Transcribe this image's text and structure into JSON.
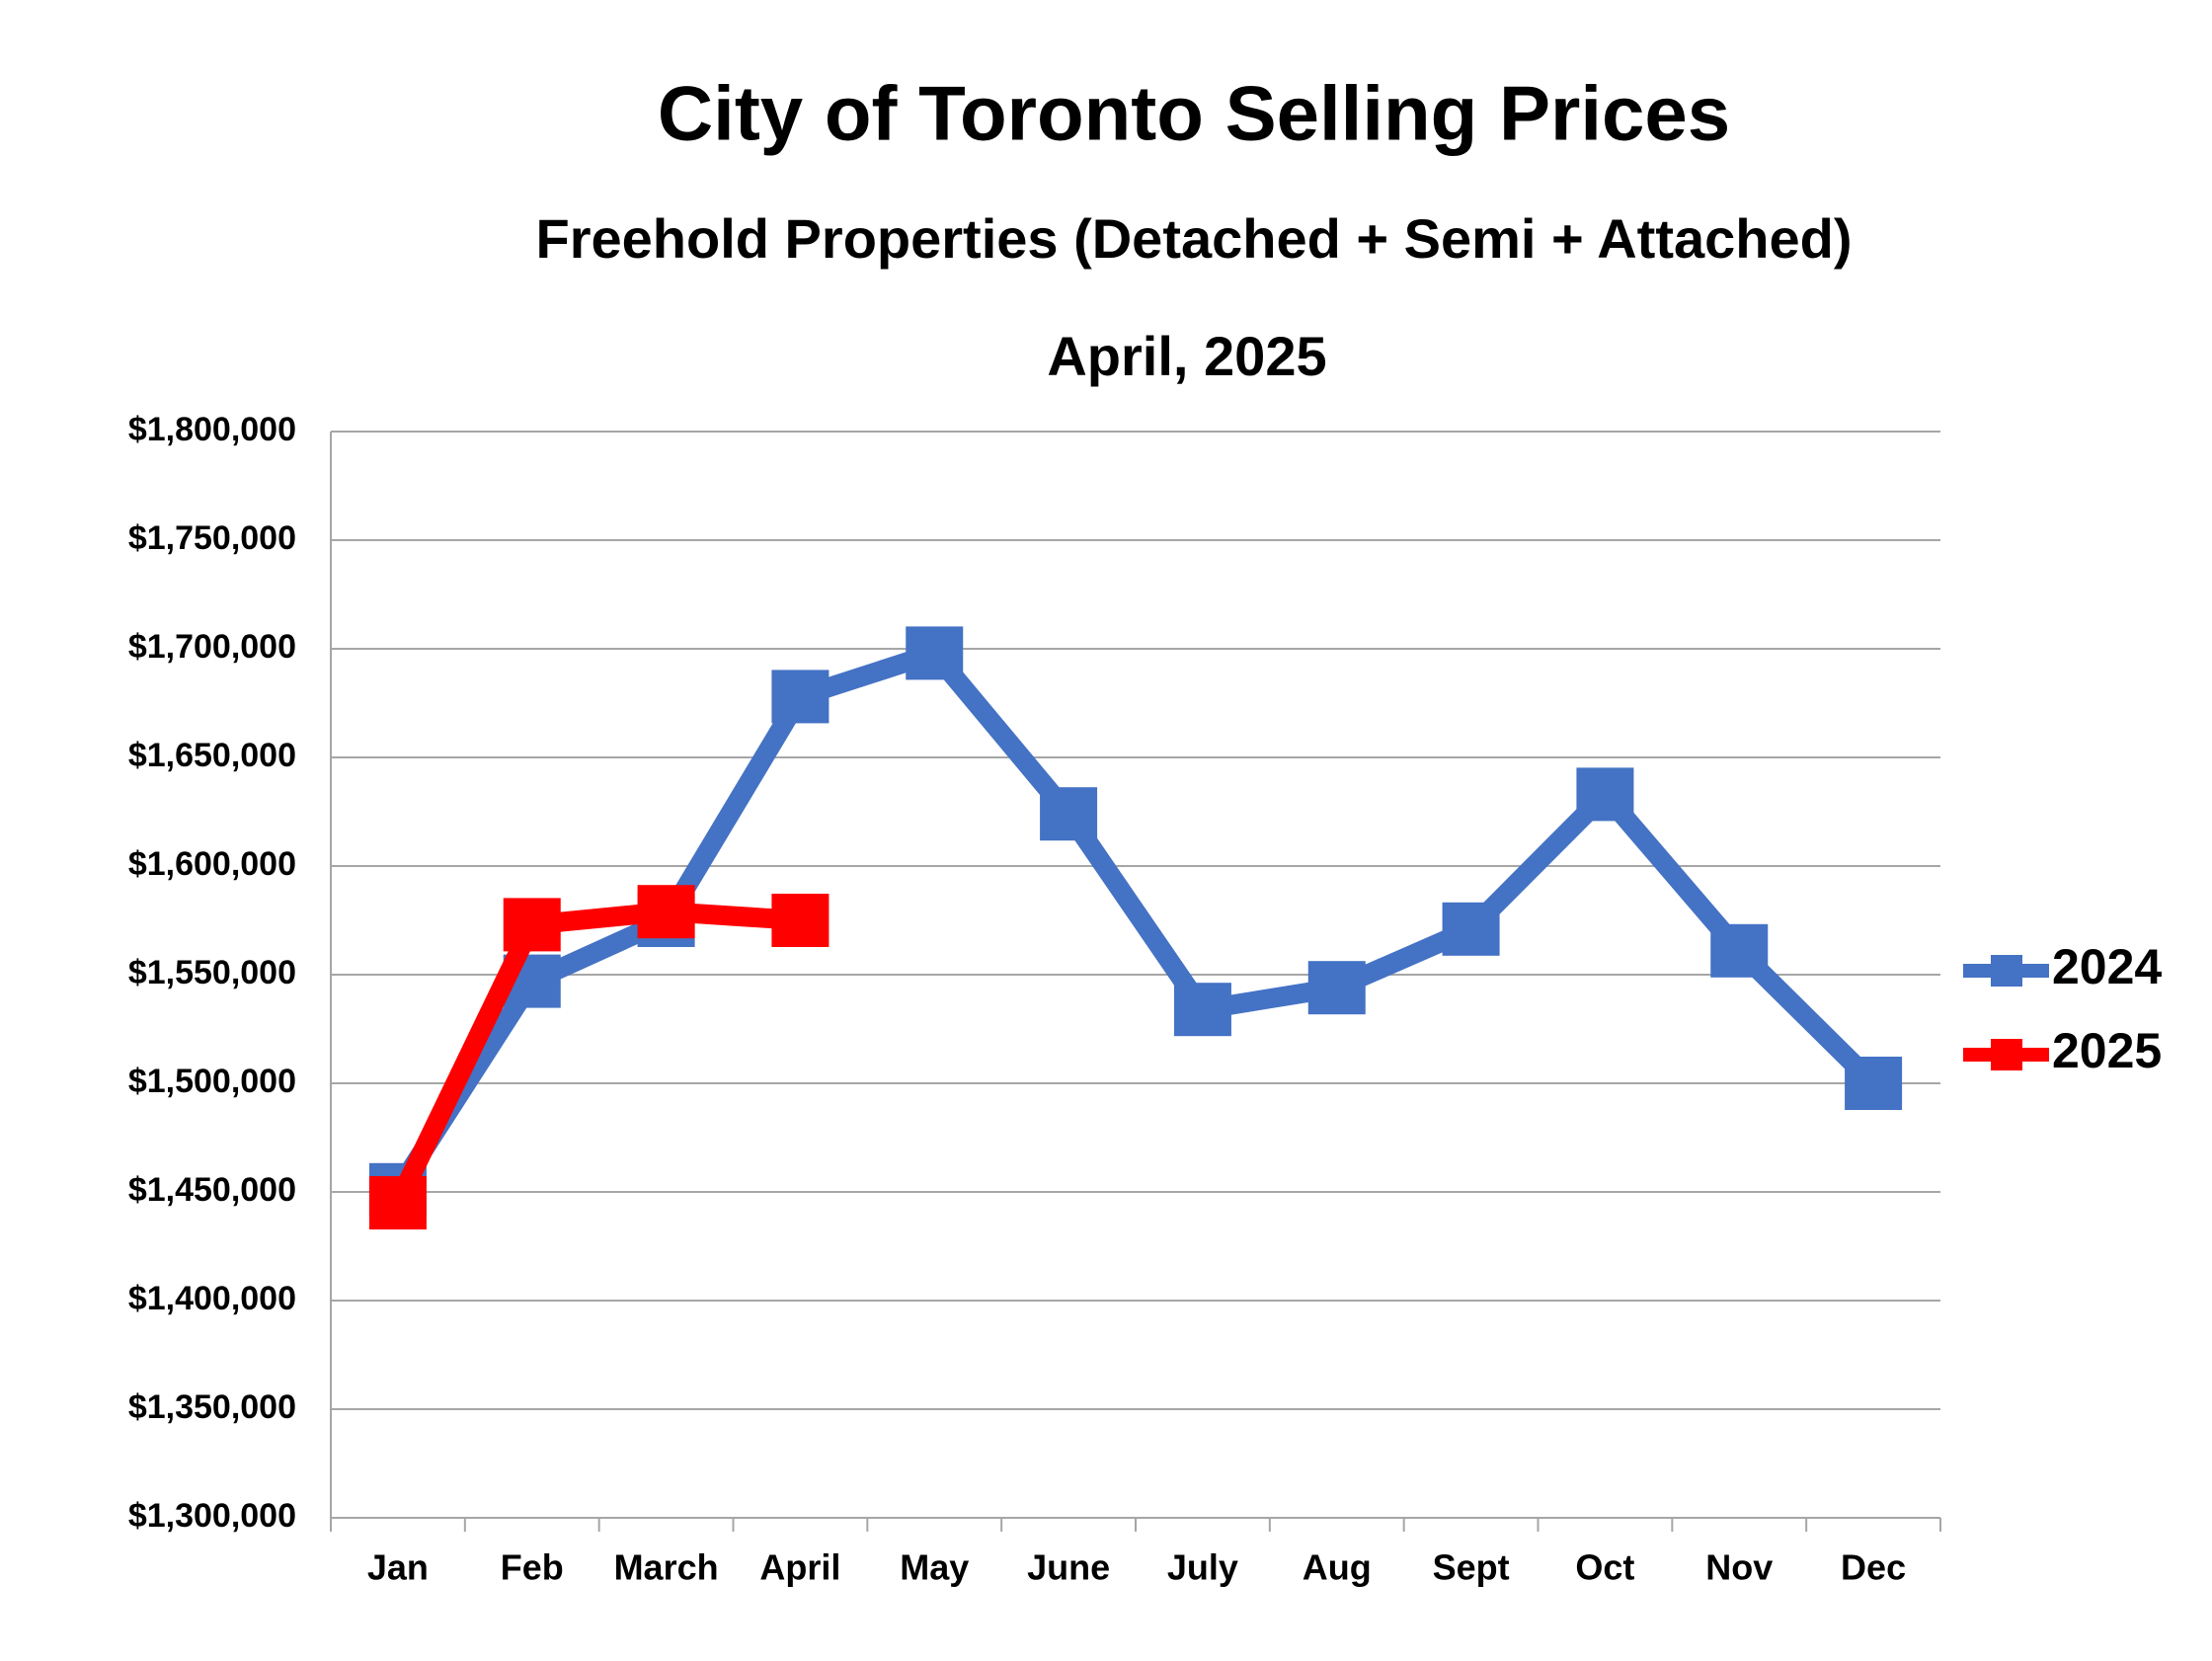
{
  "chart_data": {
    "type": "line",
    "title": "City of Toronto Selling Prices",
    "subtitle": "Freehold Properties (Detached + Semi + Attached)",
    "date_label": "April, 2025",
    "categories": [
      "Jan",
      "Feb",
      "March",
      "April",
      "May",
      "June",
      "July",
      "Aug",
      "Sept",
      "Oct",
      "Nov",
      "Dec"
    ],
    "series": [
      {
        "name": "2024",
        "color": "#4472c4",
        "values": [
          1451000,
          1547000,
          1575000,
          1678000,
          1698000,
          1624000,
          1534000,
          1544000,
          1571000,
          1633000,
          1561000,
          1500000
        ]
      },
      {
        "name": "2025",
        "color": "#ff0000",
        "values": [
          1445000,
          1573000,
          1579000,
          1575000,
          null,
          null,
          null,
          null,
          null,
          null,
          null,
          null
        ]
      }
    ],
    "ylim": [
      1300000,
      1800000
    ],
    "yticks": [
      {
        "value": 1300000,
        "label": "$1,300,000"
      },
      {
        "value": 1350000,
        "label": "$1,350,000"
      },
      {
        "value": 1400000,
        "label": "$1,400,000"
      },
      {
        "value": 1450000,
        "label": "$1,450,000"
      },
      {
        "value": 1500000,
        "label": "$1,500,000"
      },
      {
        "value": 1550000,
        "label": "$1,550,000"
      },
      {
        "value": 1600000,
        "label": "$1,600,000"
      },
      {
        "value": 1650000,
        "label": "$1,650,000"
      },
      {
        "value": 1700000,
        "label": "$1,700,000"
      },
      {
        "value": 1750000,
        "label": "$1,750,000"
      },
      {
        "value": 1800000,
        "label": "$1,800,000"
      }
    ],
    "grid": true,
    "legend": "right"
  }
}
